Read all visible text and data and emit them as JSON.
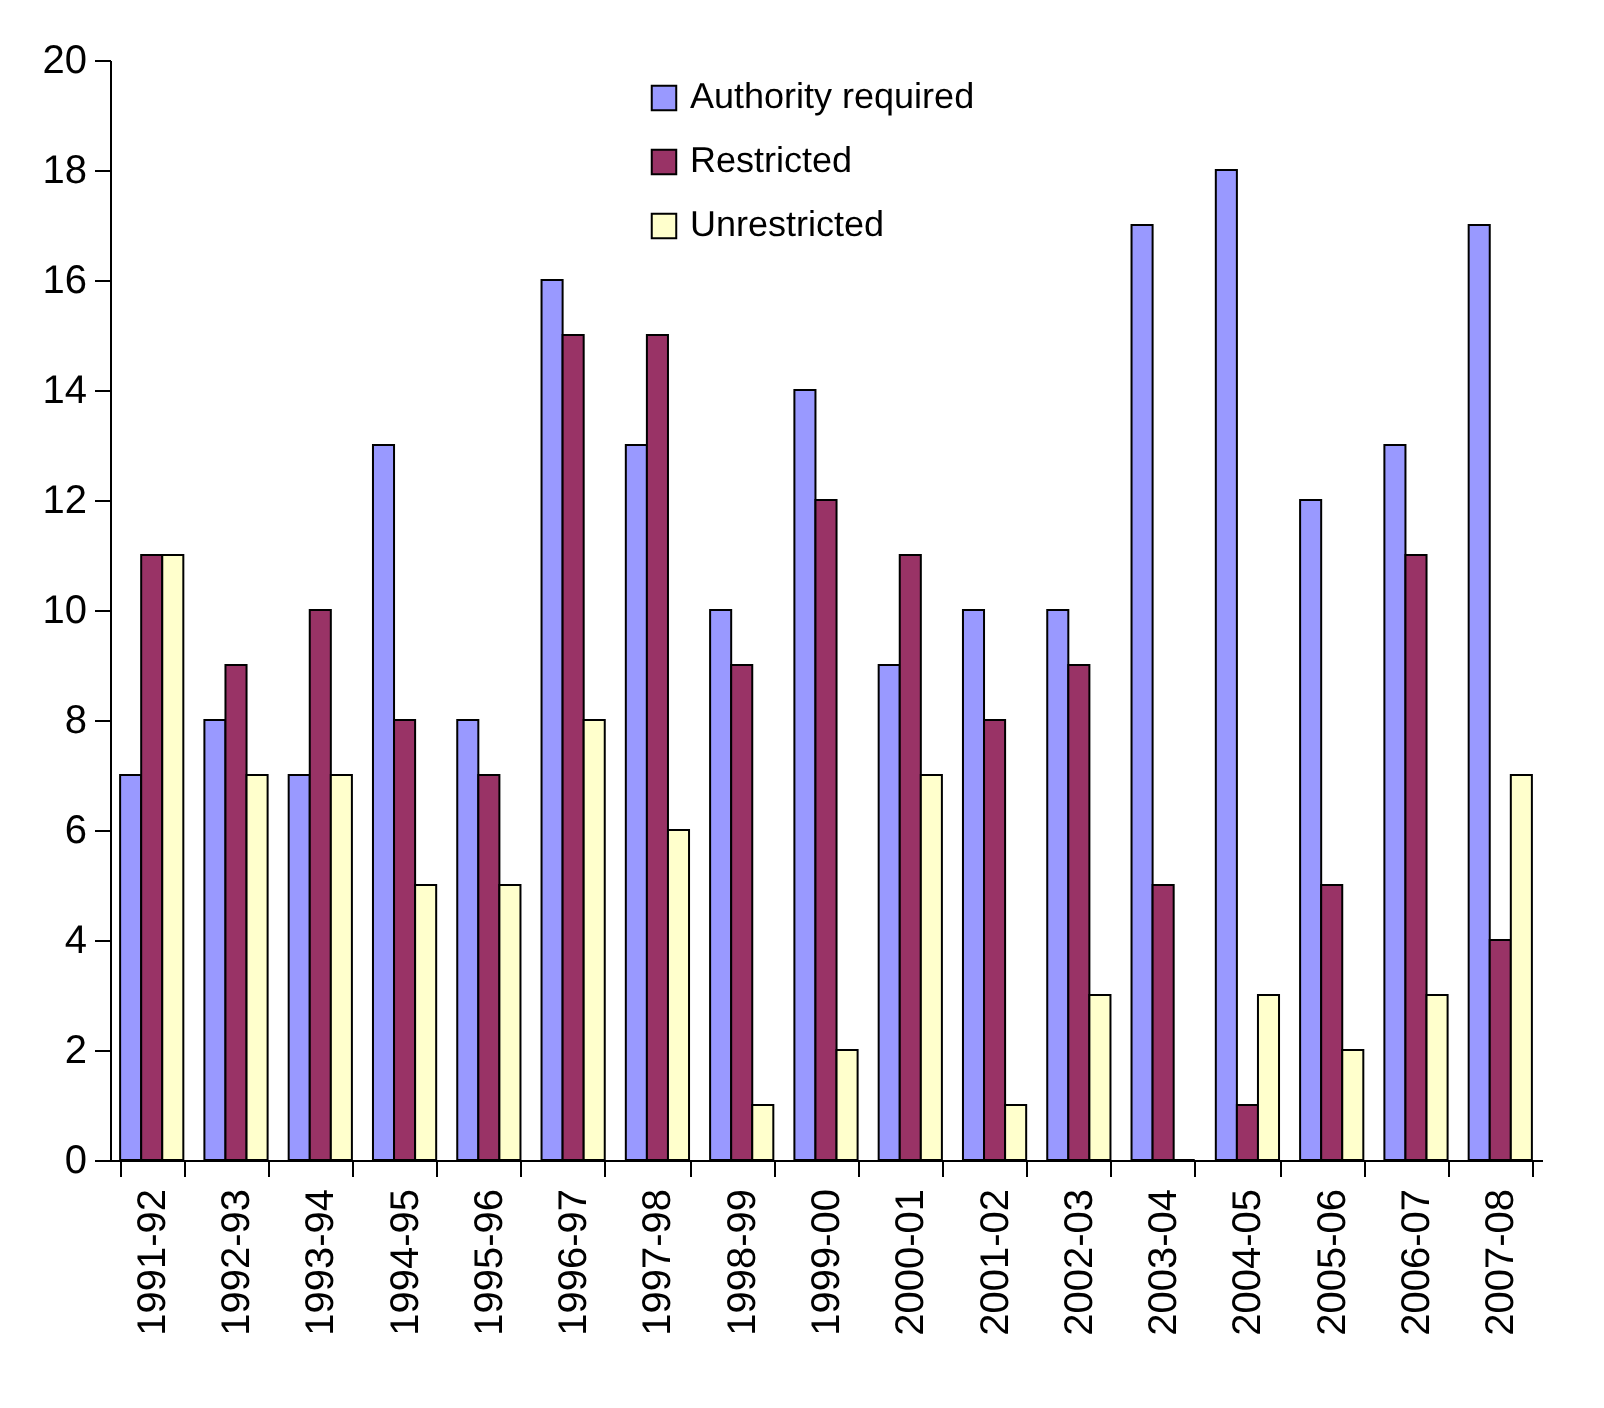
{
  "chart_data": {
    "type": "bar",
    "categories": [
      "1991-92",
      "1992-93",
      "1993-94",
      "1994-95",
      "1995-96",
      "1996-97",
      "1997-98",
      "1998-99",
      "1999-00",
      "2000-01",
      "2001-02",
      "2002-03",
      "2003-04",
      "2004-05",
      "2005-06",
      "2006-07",
      "2007-08"
    ],
    "series": [
      {
        "name": "Authority required",
        "color": "#9999ff",
        "values": [
          7,
          8,
          7,
          13,
          8,
          16,
          13,
          10,
          14,
          9,
          10,
          10,
          17,
          18,
          12,
          13,
          17
        ]
      },
      {
        "name": "Restricted",
        "color": "#993366",
        "values": [
          11,
          9,
          10,
          8,
          7,
          15,
          15,
          9,
          12,
          11,
          8,
          9,
          5,
          1,
          5,
          11,
          4
        ]
      },
      {
        "name": "Unrestricted",
        "color": "#ffffcc",
        "values": [
          11,
          7,
          7,
          5,
          5,
          8,
          6,
          1,
          2,
          7,
          1,
          3,
          0,
          3,
          2,
          3,
          7
        ]
      }
    ],
    "ylim": [
      0,
      20
    ],
    "yticks": [
      0,
      2,
      4,
      6,
      8,
      10,
      12,
      14,
      16,
      18,
      20
    ],
    "grid": false,
    "legend": "top"
  }
}
